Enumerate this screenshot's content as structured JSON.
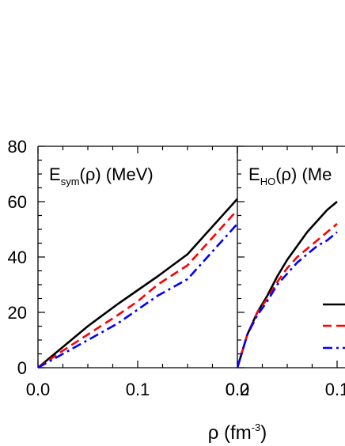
{
  "chart_data": {
    "type": "line",
    "xlabel": {
      "base": "ρ (fm",
      "sup": "-3",
      "tail": ")"
    },
    "ylim": [
      0,
      80
    ],
    "yticks": [
      "0",
      "20",
      "40",
      "60",
      "80"
    ],
    "panels": [
      {
        "title": {
          "base": "E",
          "sub": "sym",
          "tail": "(ρ) (MeV)"
        },
        "xlim": [
          0,
          0.2
        ],
        "xticks": [
          "0.0",
          "0.1",
          "0.2"
        ],
        "series": [
          {
            "color": "#000000",
            "dash": "solid",
            "x": [
              0,
              0.02,
              0.05,
              0.08,
              0.1,
              0.12,
              0.15,
              0.2
            ],
            "y": [
              0,
              6,
              15,
              23,
              28,
              33,
              41,
              61
            ]
          },
          {
            "color": "#ff0000",
            "dash": "dashed",
            "x": [
              0,
              0.02,
              0.05,
              0.08,
              0.1,
              0.12,
              0.15,
              0.2
            ],
            "y": [
              0,
              5,
              12,
              19,
              24,
              30,
              37,
              57
            ]
          },
          {
            "color": "#0000ff",
            "dash": "dashdot",
            "x": [
              0,
              0.02,
              0.05,
              0.08,
              0.1,
              0.12,
              0.15,
              0.2
            ],
            "y": [
              0,
              4,
              10,
              16,
              21,
              26,
              32,
              52
            ]
          }
        ]
      },
      {
        "title": {
          "base": "E",
          "sub": "HO",
          "tail": "(ρ) (Me"
        },
        "xlim": [
          0,
          0.2
        ],
        "xticks": [
          "0.0",
          "0.1"
        ],
        "series": [
          {
            "color": "#000000",
            "dash": "solid",
            "x": [
              0,
              0.005,
              0.01,
              0.02,
              0.03,
              0.04,
              0.05,
              0.06,
              0.07,
              0.08,
              0.09,
              0.1
            ],
            "y": [
              0,
              6,
              12,
              20,
              26,
              33,
              39,
              44,
              49,
              53,
              57,
              60
            ]
          },
          {
            "color": "#ff0000",
            "dash": "dashed",
            "x": [
              0,
              0.005,
              0.01,
              0.02,
              0.03,
              0.04,
              0.05,
              0.06,
              0.07,
              0.08,
              0.09,
              0.1
            ],
            "y": [
              0,
              6,
              12,
              20,
              25,
              31,
              36,
              40,
              43,
              46,
              49,
              52
            ]
          },
          {
            "color": "#0000ff",
            "dash": "dashdot",
            "x": [
              0,
              0.005,
              0.01,
              0.02,
              0.03,
              0.04,
              0.05,
              0.06,
              0.07,
              0.08,
              0.09,
              0.1
            ],
            "y": [
              0,
              6,
              12,
              19,
              24,
              30,
              34,
              38,
              41,
              44,
              46,
              49
            ]
          }
        ]
      }
    ],
    "legend": {
      "placement": "right",
      "entries": [
        {
          "color": "#000000",
          "dash": "solid"
        },
        {
          "color": "#ff0000",
          "dash": "dashed"
        },
        {
          "color": "#0000ff",
          "dash": "dashdot"
        }
      ]
    }
  }
}
